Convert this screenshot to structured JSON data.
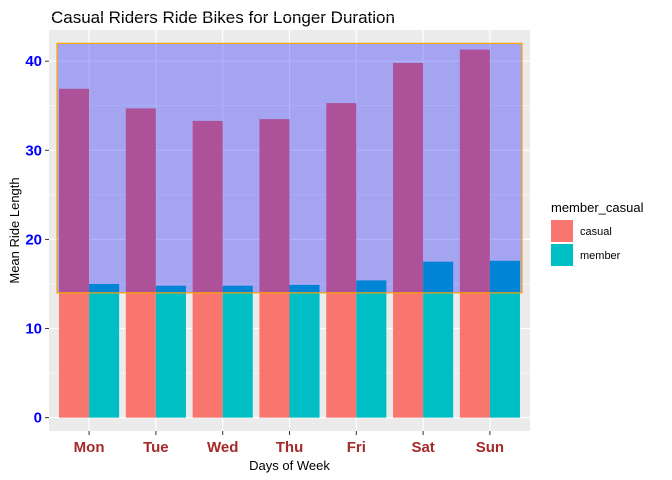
{
  "chart_data": {
    "type": "bar",
    "title": "Casual Riders Ride Bikes for Longer Duration",
    "xlabel": "Days of Week",
    "ylabel": "Mean Ride Length",
    "categories": [
      "Mon",
      "Tue",
      "Wed",
      "Thu",
      "Fri",
      "Sat",
      "Sun"
    ],
    "series": [
      {
        "name": "casual",
        "color": "#F8766D",
        "values": [
          36.9,
          34.7,
          33.3,
          33.5,
          35.3,
          39.8,
          41.3
        ]
      },
      {
        "name": "member",
        "color": "#00BFC4",
        "values": [
          15.0,
          14.8,
          14.8,
          14.9,
          15.4,
          17.5,
          17.6
        ]
      }
    ],
    "ylim": [
      -1.5,
      43.5
    ],
    "yticks": [
      0,
      10,
      20,
      30,
      40
    ],
    "legend_title": "member_casual",
    "legend_position": "right",
    "grid": true,
    "tick_colors": {
      "y": "#0000FF",
      "x": "#A52A2A"
    },
    "highlight_rect": {
      "ymin": 14,
      "ymax": 42,
      "fill": "#0000FF",
      "opacity": 0.3,
      "border": "#FFA500"
    }
  }
}
